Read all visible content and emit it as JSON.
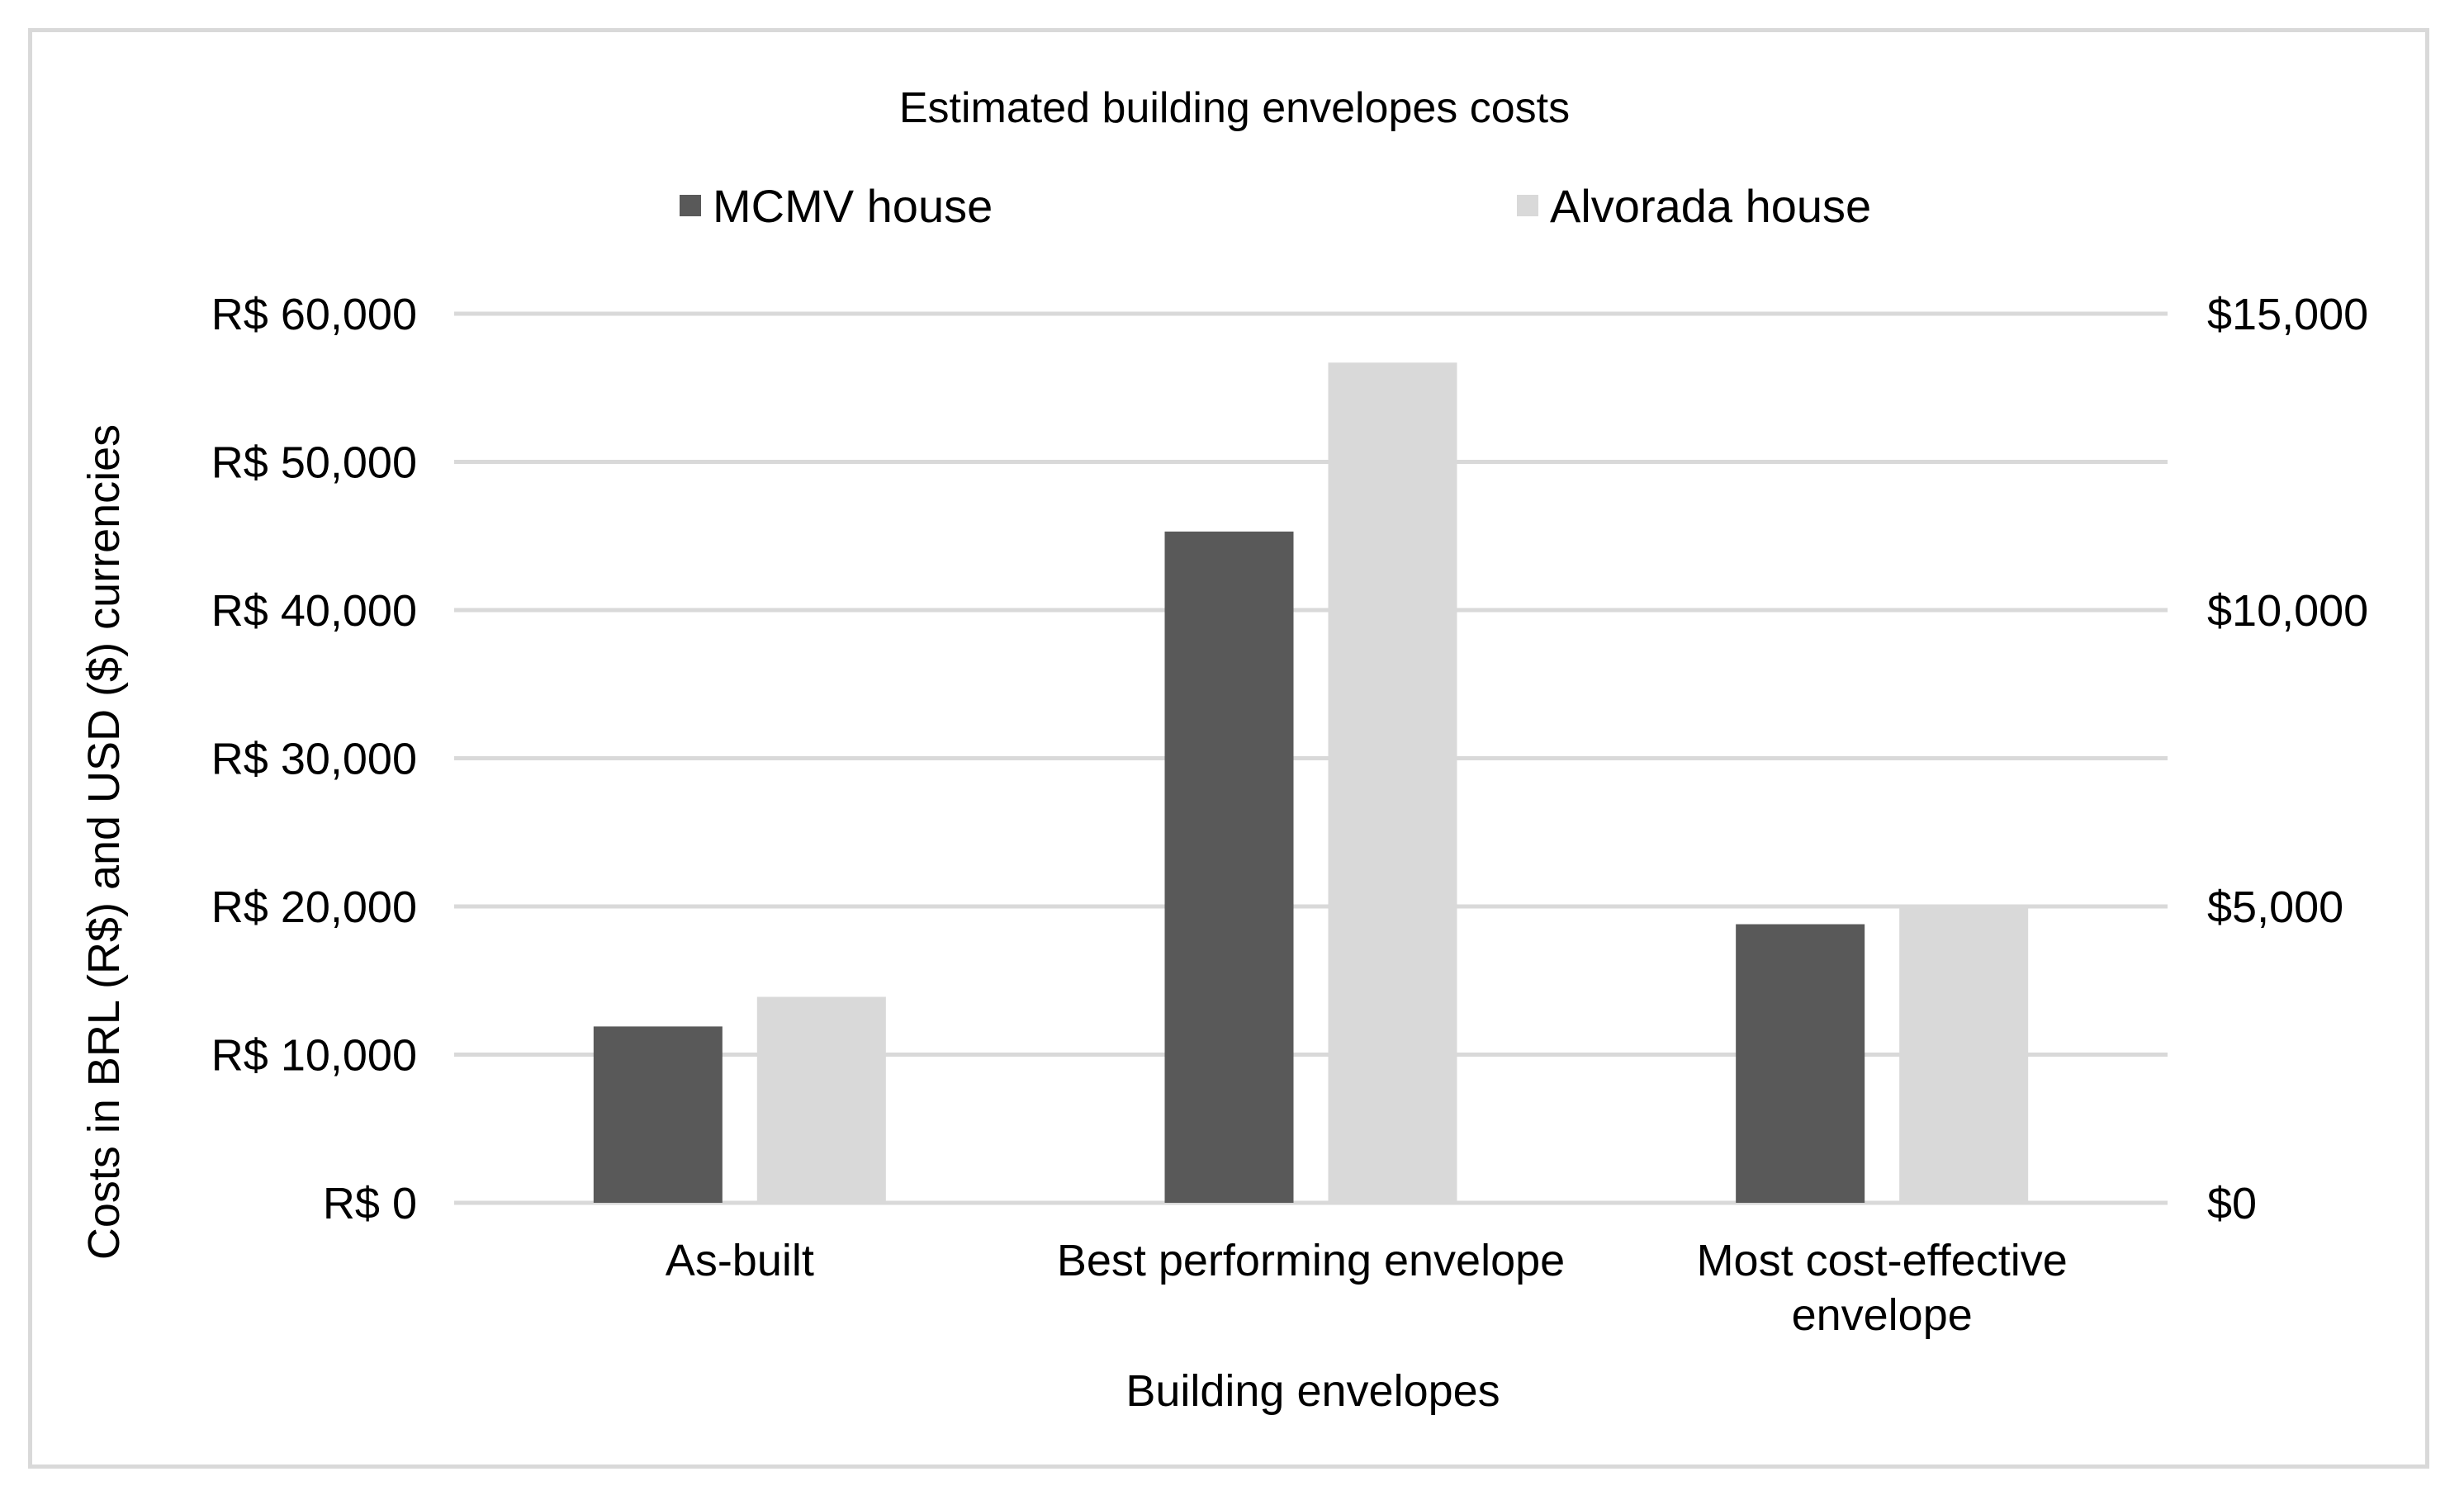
{
  "chart_data": {
    "type": "bar",
    "title": "Estimated building envelopes costs",
    "xlabel": "Building envelopes",
    "ylabel": "Costs in BRL (R$) and USD ($) currencies",
    "categories": [
      [
        "As-built"
      ],
      [
        "Best performing envelope"
      ],
      [
        "Most cost-effective",
        "envelope"
      ]
    ],
    "series": [
      {
        "name": "MCMV house",
        "color": "#595959",
        "values": [
          11900,
          45300,
          18800
        ]
      },
      {
        "name": "Alvorada house",
        "color": "#d9d9d9",
        "values": [
          13900,
          56700,
          20000
        ]
      }
    ],
    "ylim": [
      0,
      60000
    ],
    "y_ticks": [
      0,
      10000,
      20000,
      30000,
      40000,
      50000,
      60000
    ],
    "y_tick_labels": [
      "R$ 0",
      "R$ 10,000",
      "R$ 20,000",
      "R$ 30,000",
      "R$ 40,000",
      "R$ 50,000",
      "R$ 60,000"
    ],
    "y2_ticks": [
      0,
      5000,
      10000,
      15000
    ],
    "y2_tick_labels": [
      "$0",
      "$5,000",
      "$10,000",
      "$15,000"
    ],
    "y2lim": [
      0,
      15000
    ],
    "grid": true,
    "legend_position": "top"
  }
}
